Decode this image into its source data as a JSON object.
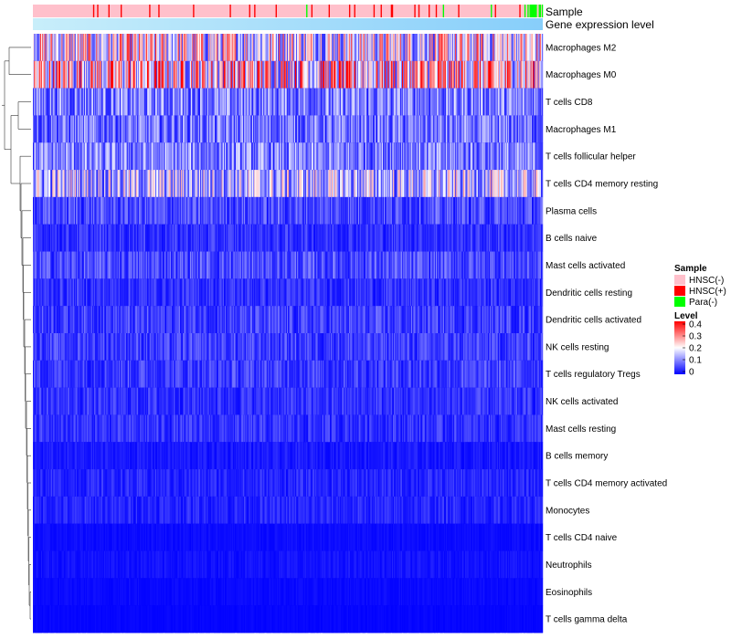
{
  "chart_data": {
    "type": "heatmap",
    "title": "",
    "annotation_tracks": [
      {
        "name": "Sample"
      },
      {
        "name": "Gene expression level"
      }
    ],
    "rows": [
      {
        "label": "Macrophages M2",
        "mean": 0.2
      },
      {
        "label": "Macrophages M0",
        "mean": 0.24
      },
      {
        "label": "T cells CD8",
        "mean": 0.1
      },
      {
        "label": "Macrophages M1",
        "mean": 0.09
      },
      {
        "label": "T cells follicular helper",
        "mean": 0.1
      },
      {
        "label": "T cells CD4 memory resting",
        "mean": 0.15
      },
      {
        "label": "Plasma cells",
        "mean": 0.06
      },
      {
        "label": "B cells naive",
        "mean": 0.04
      },
      {
        "label": "Mast cells activated",
        "mean": 0.06
      },
      {
        "label": "Dendritic cells resting",
        "mean": 0.04
      },
      {
        "label": "Dendritic cells activated",
        "mean": 0.05
      },
      {
        "label": "NK cells resting",
        "mean": 0.05
      },
      {
        "label": "T cells regulatory  Tregs",
        "mean": 0.05
      },
      {
        "label": "NK cells activated",
        "mean": 0.04
      },
      {
        "label": "Mast cells resting",
        "mean": 0.04
      },
      {
        "label": "B cells memory",
        "mean": 0.02
      },
      {
        "label": "T cells CD4 memory activated",
        "mean": 0.03
      },
      {
        "label": "Monocytes",
        "mean": 0.03
      },
      {
        "label": "T cells CD4 naive",
        "mean": 0.01
      },
      {
        "label": "Neutrophils",
        "mean": 0.015
      },
      {
        "label": "Eosinophils",
        "mean": 0.008
      },
      {
        "label": "T cells gamma delta",
        "mean": 0.005
      }
    ],
    "column_count": 500,
    "sample_legend": {
      "title": "Sample",
      "entries": [
        {
          "label": "HNSC(-)",
          "color": "#ffc0cb"
        },
        {
          "label": "HNSC(+)",
          "color": "#ff0000"
        },
        {
          "label": "Para(-)",
          "color": "#00ff00"
        }
      ]
    },
    "expression_track": {
      "color_start": "#c8eefa",
      "color_end": "#87cefa"
    },
    "level_legend": {
      "title": "Level",
      "min": 0,
      "max": 0.4,
      "ticks": [
        "0.4",
        "0.3",
        "0.2",
        "0.1",
        "0"
      ],
      "colors": [
        "#0000ff",
        "#ffffff",
        "#ff0000"
      ]
    }
  }
}
